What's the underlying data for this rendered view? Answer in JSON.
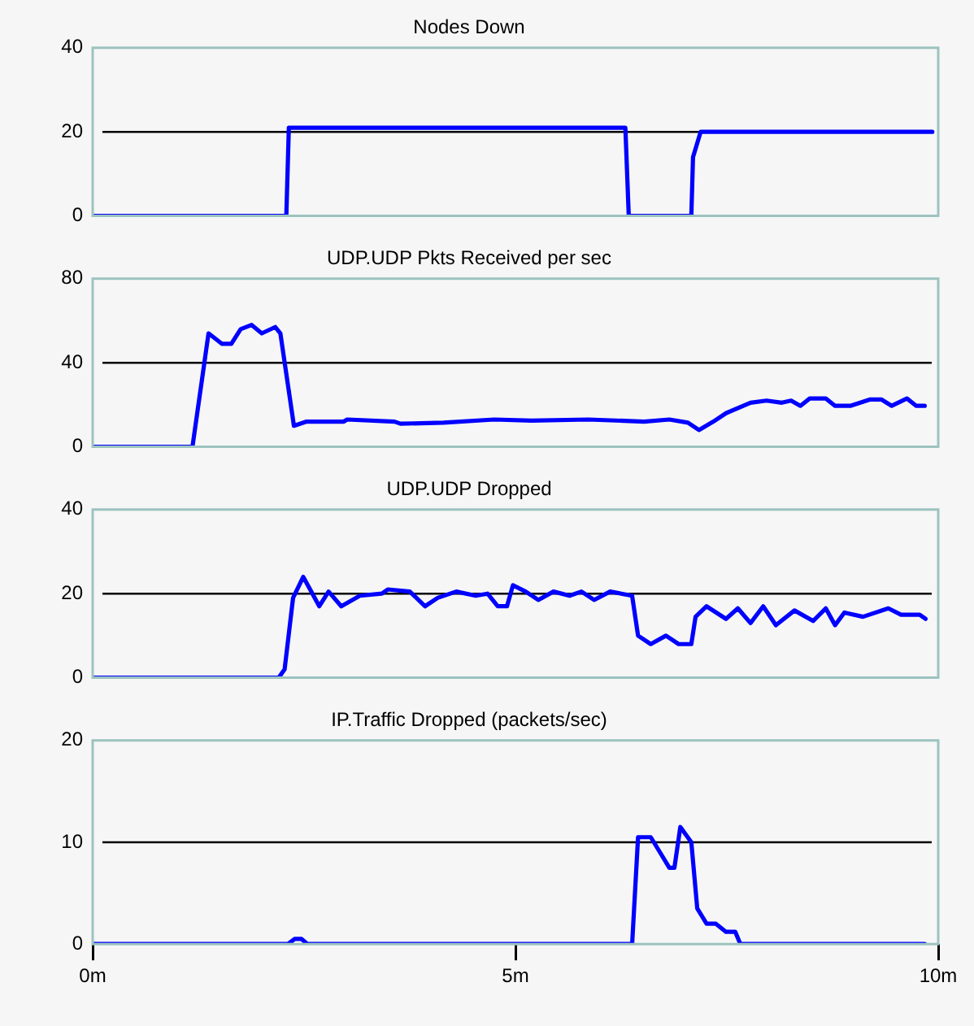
{
  "chart_data": [
    {
      "type": "line",
      "title": "Nodes Down",
      "xlim": [
        0,
        10
      ],
      "ylim": [
        0,
        40
      ],
      "yticks": [
        0,
        20,
        40
      ],
      "tick_labels": "y",
      "grid": false,
      "legend": false,
      "ref_lines": [
        {
          "axis": "y",
          "value": 20,
          "color": "#000000"
        }
      ],
      "series": [
        {
          "color": "#0000ff",
          "x": [
            0,
            2.29,
            2.32,
            6.3,
            6.34,
            7.08,
            7.1,
            7.19,
            7.89,
            9.93
          ],
          "values": [
            0,
            0,
            21,
            21,
            0,
            0,
            14,
            20,
            20,
            20
          ]
        }
      ]
    },
    {
      "type": "line",
      "title": "UDP.UDP Pkts Received per sec",
      "xlim": [
        0,
        10
      ],
      "ylim": [
        0,
        80
      ],
      "yticks": [
        0,
        40,
        80
      ],
      "tick_labels": "y",
      "grid": false,
      "legend": false,
      "ref_lines": [
        {
          "axis": "y",
          "value": 40,
          "color": "#000000"
        }
      ],
      "series": [
        {
          "color": "#0000ff",
          "x": [
            0,
            1.18,
            1.37,
            1.53,
            1.64,
            1.75,
            1.88,
            2.0,
            2.16,
            2.22,
            2.38,
            2.53,
            2.97,
            3.01,
            3.57,
            3.64,
            4.15,
            4.75,
            5.19,
            5.86,
            6.52,
            6.82,
            7.04,
            7.17,
            7.34,
            7.49,
            7.78,
            7.97,
            8.15,
            8.26,
            8.37,
            8.48,
            8.67,
            8.78,
            8.96,
            9.19,
            9.33,
            9.45,
            9.63,
            9.74,
            9.84
          ],
          "values": [
            0,
            0,
            54,
            49,
            49,
            56,
            58,
            54,
            57,
            54,
            10,
            12,
            12,
            13,
            12,
            11,
            11.5,
            13,
            12.5,
            13,
            12,
            13,
            11.5,
            8,
            12,
            16,
            21,
            22,
            21,
            22,
            19.5,
            23,
            23,
            19.5,
            19.5,
            22.5,
            22.5,
            19.5,
            23,
            19.5,
            19.5
          ]
        }
      ]
    },
    {
      "type": "line",
      "title": "UDP.UDP Dropped",
      "xlim": [
        0,
        10
      ],
      "ylim": [
        0,
        40
      ],
      "yticks": [
        0,
        20,
        40
      ],
      "tick_labels": "y",
      "grid": false,
      "legend": false,
      "ref_lines": [
        {
          "axis": "y",
          "value": 20,
          "color": "#000000"
        }
      ],
      "series": [
        {
          "color": "#0000ff",
          "x": [
            0,
            2.2,
            2.27,
            2.37,
            2.49,
            2.68,
            2.79,
            2.94,
            3.16,
            3.42,
            3.49,
            3.75,
            3.93,
            4.08,
            4.3,
            4.53,
            4.67,
            4.79,
            4.9,
            4.97,
            5.12,
            5.27,
            5.45,
            5.64,
            5.78,
            5.93,
            6.12,
            6.38,
            6.45,
            6.6,
            6.78,
            6.93,
            7.08,
            7.13,
            7.26,
            7.49,
            7.63,
            7.78,
            7.93,
            8.08,
            8.3,
            8.52,
            8.67,
            8.78,
            8.89,
            9.11,
            9.41,
            9.56,
            9.78,
            9.85
          ],
          "values": [
            0,
            0,
            2,
            19,
            24,
            17,
            20.5,
            17,
            19.5,
            20,
            21,
            20.5,
            17,
            19,
            20.5,
            19.5,
            20,
            17,
            17,
            22,
            20.5,
            18.5,
            20.5,
            19.5,
            20.5,
            18.5,
            20.5,
            19.5,
            10,
            8,
            10,
            8,
            8,
            14.5,
            17,
            14,
            16.5,
            13,
            17,
            12.5,
            16,
            13.5,
            16.5,
            12.5,
            15.5,
            14.5,
            16.5,
            15,
            15,
            14
          ]
        }
      ]
    },
    {
      "type": "line",
      "title": "IP.Traffic Dropped (packets/sec)",
      "xlim": [
        0,
        10
      ],
      "ylim": [
        0,
        20
      ],
      "yticks": [
        0,
        10,
        20
      ],
      "xticks": [
        {
          "value": 0,
          "label": "0m"
        },
        {
          "value": 5,
          "label": "5m"
        },
        {
          "value": 10,
          "label": "10m"
        }
      ],
      "grid": false,
      "legend": false,
      "ref_lines": [
        {
          "axis": "y",
          "value": 10,
          "color": "#000000"
        }
      ],
      "series": [
        {
          "color": "#0000ff",
          "x": [
            0,
            2.31,
            2.39,
            2.47,
            2.54,
            6.38,
            6.45,
            6.6,
            6.71,
            6.82,
            6.88,
            6.95,
            7.08,
            7.15,
            7.26,
            7.37,
            7.49,
            7.6,
            7.66,
            9.84
          ],
          "values": [
            0,
            0,
            0.5,
            0.5,
            0,
            0,
            10.5,
            10.5,
            9,
            7.5,
            7.5,
            11.5,
            10,
            3.5,
            2,
            2,
            1.2,
            1.2,
            0,
            0
          ]
        }
      ]
    }
  ]
}
